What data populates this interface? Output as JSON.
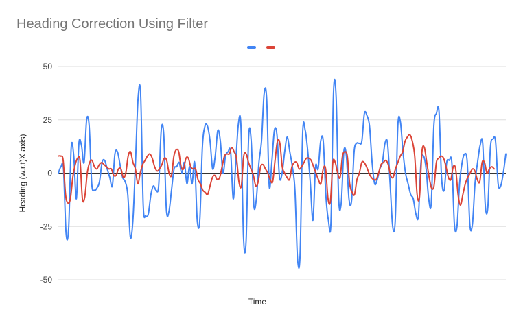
{
  "chart_title": "Heading Correction Using Filter",
  "chart_data": {
    "type": "line",
    "title": "Heading Correction Using Filter",
    "xlabel": "Time",
    "ylabel": "Heading (w.r.t)X axis)",
    "ylim": [
      -50,
      50
    ],
    "yticks": [
      50,
      25,
      0,
      -25,
      -50
    ],
    "grid": true,
    "legend_position": "top",
    "series": [
      {
        "color": "#4285f4",
        "values": [
          0,
          3,
          2,
          -28,
          -26,
          12,
          8,
          -12,
          14,
          13,
          5,
          25,
          22,
          -5,
          -8,
          -7,
          -4,
          5,
          6,
          2,
          -2,
          -6,
          9,
          10,
          4,
          -2,
          -4,
          -10,
          -30,
          -22,
          5,
          35,
          37,
          -15,
          -20,
          -19,
          -10,
          -6,
          -8,
          -6,
          20,
          18,
          -17,
          -18,
          -8,
          2,
          3,
          5,
          0,
          5,
          -5,
          3,
          -5,
          5,
          -22,
          -22,
          12,
          22,
          22,
          15,
          2,
          8,
          20,
          15,
          0,
          8,
          10,
          10,
          -12,
          5,
          23,
          22,
          -30,
          -32,
          17,
          15,
          -15,
          -12,
          5,
          15,
          37,
          35,
          -6,
          5,
          20,
          18,
          -2,
          0,
          10,
          17,
          10,
          3,
          -8,
          -40,
          -38,
          19,
          20,
          10,
          -5,
          -22,
          3,
          2,
          15,
          15,
          -10,
          -22,
          -23,
          38,
          36,
          -12,
          -14,
          10,
          8,
          -12,
          -13,
          10,
          14,
          14,
          15,
          28,
          27,
          22,
          5,
          -5,
          -3,
          2,
          5,
          14,
          14,
          -5,
          -25,
          -22,
          22,
          24,
          10,
          0,
          -5,
          -10,
          -12,
          -19,
          -20,
          5,
          8,
          2,
          -12,
          -14,
          22,
          28,
          29,
          -2,
          -8,
          5,
          6,
          5,
          -24,
          -25,
          -5,
          5,
          9,
          5,
          -24,
          -24,
          -5,
          5,
          13,
          14,
          -15,
          -16,
          12,
          16,
          15,
          -5,
          -6,
          0,
          9
        ]
      },
      {
        "color": "#db4437",
        "values": [
          8,
          8,
          6,
          -10,
          -14,
          -12,
          -2,
          4,
          7,
          6,
          -12,
          -11,
          0,
          5,
          6,
          3,
          2,
          4,
          5,
          4,
          3,
          2,
          2,
          -1,
          -1,
          2,
          2,
          -2,
          0,
          8,
          10,
          5,
          2,
          -5,
          0,
          4,
          6,
          8,
          9,
          7,
          3,
          1,
          2,
          4,
          7,
          6,
          0,
          -1,
          8,
          11,
          10,
          3,
          2,
          7,
          7,
          3,
          2,
          2,
          -3,
          -5,
          -8,
          -9,
          -10,
          -6,
          -2,
          -1,
          -3,
          -2,
          3,
          8,
          9,
          9,
          12,
          10,
          7,
          -4,
          -6,
          8,
          9,
          5,
          2,
          -1,
          -6,
          -4,
          3,
          4,
          2,
          0,
          -3,
          -4,
          6,
          15,
          14,
          3,
          0,
          -2,
          -3,
          3,
          5,
          5,
          2,
          3,
          5,
          7,
          7,
          6,
          3,
          0,
          -3,
          -5,
          2,
          2,
          -12,
          -13,
          5,
          5,
          0,
          -2,
          8,
          10,
          8,
          -5,
          -9,
          -10,
          -3,
          0,
          5,
          5,
          3,
          0,
          -2,
          -3,
          -3,
          0,
          4,
          5,
          6,
          4,
          -1,
          -2,
          2,
          5,
          8,
          10,
          15,
          17,
          18,
          15,
          8,
          -10,
          -11,
          10,
          12,
          5,
          -2,
          -7,
          -6,
          5,
          7,
          8,
          7,
          3,
          -2,
          -3,
          3,
          2,
          -10,
          -15,
          -10,
          -5,
          -2,
          0,
          2,
          1,
          -3,
          -4,
          5,
          5,
          0,
          2,
          3,
          2
        ]
      }
    ]
  }
}
